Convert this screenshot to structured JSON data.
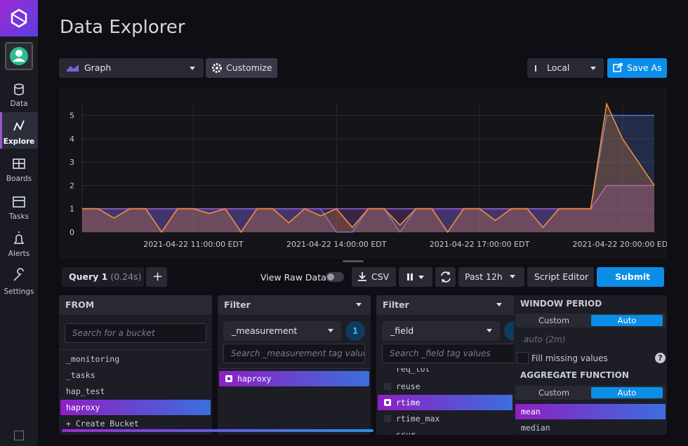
{
  "sidebar": {
    "items": [
      {
        "label": "Data"
      },
      {
        "label": "Explore"
      },
      {
        "label": "Boards"
      },
      {
        "label": "Tasks"
      },
      {
        "label": "Alerts"
      },
      {
        "label": "Settings"
      }
    ]
  },
  "header": {
    "title": "Data Explorer"
  },
  "toolbar": {
    "graph_type": "Graph",
    "customize": "Customize",
    "timezone": "Local",
    "save": "Save As"
  },
  "graph": {
    "type": "line",
    "area": true,
    "grid": true,
    "ylim": [
      0,
      5.5
    ],
    "yticks": [
      0,
      1,
      2,
      3,
      4,
      5
    ],
    "xlim": [
      "2021-04-22 08:40:00 EDT",
      "2021-04-22 20:40:00 EDT"
    ],
    "xticks": [
      "2021-04-22 11:00:00 EDT",
      "2021-04-22 14:00:00 EDT",
      "2021-04-22 17:00:00 EDT",
      "2021-04-22 20:00:00 EDT"
    ],
    "x": [
      "2021-04-22 08:40:00 EDT",
      "2021-04-22 09:00:00 EDT",
      "2021-04-22 09:20:00 EDT",
      "2021-04-22 09:40:00 EDT",
      "2021-04-22 10:00:00 EDT",
      "2021-04-22 10:20:00 EDT",
      "2021-04-22 10:40:00 EDT",
      "2021-04-22 11:00:00 EDT",
      "2021-04-22 11:20:00 EDT",
      "2021-04-22 11:40:00 EDT",
      "2021-04-22 12:00:00 EDT",
      "2021-04-22 12:20:00 EDT",
      "2021-04-22 12:40:00 EDT",
      "2021-04-22 13:00:00 EDT",
      "2021-04-22 13:20:00 EDT",
      "2021-04-22 13:40:00 EDT",
      "2021-04-22 14:00:00 EDT",
      "2021-04-22 14:20:00 EDT",
      "2021-04-22 14:40:00 EDT",
      "2021-04-22 15:00:00 EDT",
      "2021-04-22 15:20:00 EDT",
      "2021-04-22 15:40:00 EDT",
      "2021-04-22 16:00:00 EDT",
      "2021-04-22 16:20:00 EDT",
      "2021-04-22 16:40:00 EDT",
      "2021-04-22 17:00:00 EDT",
      "2021-04-22 17:20:00 EDT",
      "2021-04-22 17:40:00 EDT",
      "2021-04-22 18:00:00 EDT",
      "2021-04-22 18:20:00 EDT",
      "2021-04-22 18:40:00 EDT",
      "2021-04-22 19:00:00 EDT",
      "2021-04-22 19:20:00 EDT",
      "2021-04-22 19:40:00 EDT",
      "2021-04-22 20:00:00 EDT",
      "2021-04-22 20:20:00 EDT",
      "2021-04-22 20:40:00 EDT"
    ],
    "series": [
      {
        "color": "#4b70d6",
        "values": [
          1,
          1,
          1,
          1,
          1,
          1,
          1,
          1,
          1,
          1,
          1,
          1,
          1,
          1,
          1,
          1,
          0,
          0,
          1,
          1,
          0,
          1,
          1,
          1,
          1,
          1,
          1,
          1,
          1,
          1,
          1,
          1,
          1,
          5,
          5,
          5,
          5
        ]
      },
      {
        "color": "#9b57d3",
        "values": [
          1,
          1,
          1,
          1,
          1,
          1,
          1,
          1,
          1,
          1,
          1,
          1,
          1,
          1,
          1,
          1,
          1,
          1,
          1,
          1,
          1,
          1,
          1,
          1,
          1,
          1,
          1,
          1,
          1,
          1,
          1,
          1,
          1,
          2,
          2,
          2,
          2
        ]
      },
      {
        "color": "#f48d38",
        "values": [
          1,
          1,
          0.6,
          1,
          1,
          0,
          1,
          1,
          0.8,
          1,
          0,
          1,
          1,
          0.4,
          1,
          0.7,
          1,
          0.2,
          1,
          1,
          0.3,
          1,
          1,
          0,
          1,
          1,
          0.5,
          1,
          1,
          0.2,
          1,
          1,
          1,
          5.5,
          4,
          3,
          2
        ]
      }
    ]
  },
  "query_bar": {
    "query": "Query 1",
    "time": "(0.24s)",
    "add": "+",
    "view_raw": "View Raw Data",
    "csv": "CSV",
    "range": "Past 12h",
    "script_editor": "Script Editor",
    "submit": "Submit"
  },
  "from": {
    "title": "FROM",
    "search": "Search for a bucket",
    "buckets": [
      "_monitoring",
      "_tasks",
      "hap_test",
      "haproxy"
    ],
    "create": "+ Create Bucket"
  },
  "filter1": {
    "title": "Filter",
    "key": "_measurement",
    "count": "1",
    "search": "Search _measurement tag values",
    "values": [
      "haproxy"
    ]
  },
  "filter2": {
    "title": "Filter",
    "key": "_field",
    "search": "Search _field tag values",
    "values": [
      "req_tot",
      "reuse",
      "rtime",
      "rtime_max",
      "scur"
    ]
  },
  "aggregate": {
    "window_title": "WINDOW PERIOD",
    "custom": "Custom",
    "auto": "Auto",
    "window_value": "auto (2m)",
    "fill": "Fill missing values",
    "help": "?",
    "function_title": "AGGREGATE FUNCTION",
    "custom2": "Custom",
    "auto2": "Auto",
    "functions": [
      "mean",
      "median"
    ]
  }
}
